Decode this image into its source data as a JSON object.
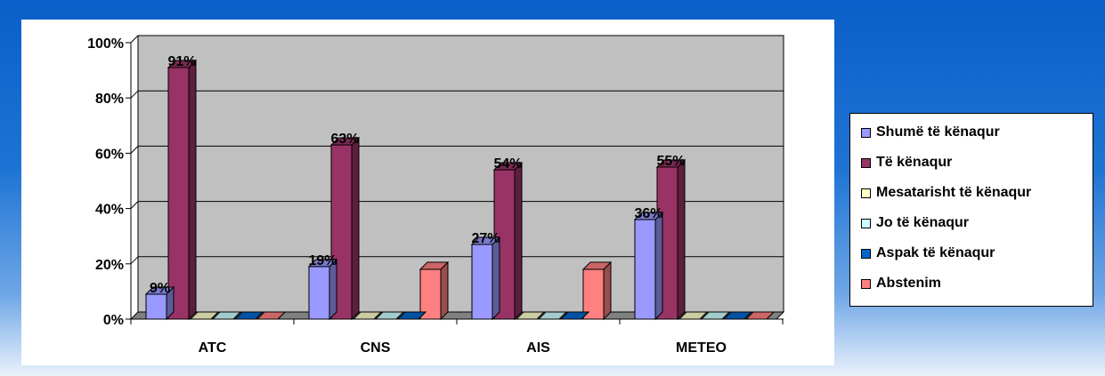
{
  "chart_data": {
    "type": "bar",
    "categories": [
      "ATC",
      "CNS",
      "AIS",
      "METEO"
    ],
    "series": [
      {
        "name": "Shumë të kënaqur",
        "color": "#9999ff",
        "values": [
          9,
          19,
          27,
          36
        ]
      },
      {
        "name": "Të kënaqur",
        "color": "#993366",
        "values": [
          91,
          63,
          54,
          55
        ]
      },
      {
        "name": "Mesatarisht të kënaqur",
        "color": "#ffffcc",
        "values": [
          0,
          0,
          0,
          0
        ]
      },
      {
        "name": "Jo të kënaqur",
        "color": "#ccffff",
        "values": [
          0,
          0,
          0,
          0
        ]
      },
      {
        "name": "Aspak të kënaqur",
        "color": "#0066cc",
        "values": [
          0,
          0,
          0,
          0
        ]
      },
      {
        "name": "Abstenim",
        "color": "#ff8080",
        "values": [
          0,
          18,
          18,
          0
        ]
      }
    ],
    "data_labels": [
      {
        "series": 0,
        "category": 0,
        "text": "9%"
      },
      {
        "series": 1,
        "category": 0,
        "text": "91%"
      },
      {
        "series": 0,
        "category": 1,
        "text": "19%"
      },
      {
        "series": 1,
        "category": 1,
        "text": "63%"
      },
      {
        "series": 0,
        "category": 2,
        "text": "27%"
      },
      {
        "series": 1,
        "category": 2,
        "text": "54%"
      },
      {
        "series": 0,
        "category": 3,
        "text": "36%"
      },
      {
        "series": 1,
        "category": 3,
        "text": "55%"
      }
    ],
    "y_ticks": [
      "0%",
      "20%",
      "40%",
      "60%",
      "80%",
      "100%"
    ],
    "ylim": [
      0,
      100
    ],
    "plot_background": "#c0c0c0",
    "grid": true,
    "legend_position": "right"
  }
}
